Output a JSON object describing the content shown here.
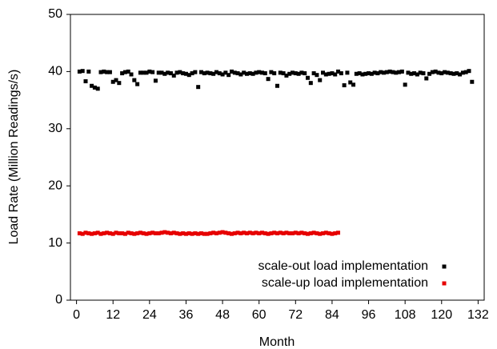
{
  "chart_data": {
    "type": "scatter",
    "xlabel": "Month",
    "ylabel": "Load Rate (Million Readings/s)",
    "xlim": [
      -2,
      134
    ],
    "ylim": [
      0,
      50
    ],
    "xticks": [
      0,
      12,
      24,
      36,
      48,
      60,
      72,
      84,
      96,
      108,
      120,
      132
    ],
    "yticks": [
      0,
      10,
      20,
      30,
      40,
      50
    ],
    "legend": "lower right",
    "series": [
      {
        "name": "scale-out load implementation",
        "color": "#000000",
        "x": [
          1,
          2,
          3,
          4,
          5,
          6,
          7,
          8,
          9,
          10,
          11,
          12,
          13,
          14,
          15,
          16,
          17,
          18,
          19,
          20,
          21,
          22,
          23,
          24,
          25,
          26,
          27,
          28,
          29,
          30,
          31,
          32,
          33,
          34,
          35,
          36,
          37,
          38,
          39,
          40,
          41,
          42,
          43,
          44,
          45,
          46,
          47,
          48,
          49,
          50,
          51,
          52,
          53,
          54,
          55,
          56,
          57,
          58,
          59,
          60,
          61,
          62,
          63,
          64,
          65,
          66,
          67,
          68,
          69,
          70,
          71,
          72,
          73,
          74,
          75,
          76,
          77,
          78,
          79,
          80,
          81,
          82,
          83,
          84,
          85,
          86,
          87,
          88,
          89,
          90,
          91,
          92,
          93,
          94,
          95,
          96,
          97,
          98,
          99,
          100,
          101,
          102,
          103,
          104,
          105,
          106,
          107,
          108,
          109,
          110,
          111,
          112,
          113,
          114,
          115,
          116,
          117,
          118,
          119,
          120,
          121,
          122,
          123,
          124,
          125,
          126,
          127,
          128,
          129,
          130
        ],
        "values": [
          40.0,
          40.1,
          38.3,
          40.0,
          37.5,
          37.2,
          37.0,
          39.9,
          40.0,
          39.9,
          39.9,
          38.2,
          38.5,
          38.0,
          39.7,
          39.9,
          40.0,
          39.5,
          38.5,
          37.8,
          39.8,
          39.8,
          39.8,
          40.0,
          39.9,
          38.4,
          39.8,
          39.8,
          39.6,
          39.8,
          39.7,
          39.3,
          39.8,
          39.9,
          39.7,
          39.6,
          39.4,
          39.7,
          39.9,
          37.3,
          39.9,
          39.7,
          39.8,
          39.7,
          39.6,
          39.9,
          39.7,
          39.5,
          39.8,
          39.4,
          40.0,
          39.8,
          39.7,
          39.5,
          39.8,
          39.6,
          39.7,
          39.6,
          39.8,
          39.9,
          39.8,
          39.7,
          38.7,
          39.9,
          39.7,
          37.5,
          39.8,
          39.7,
          39.3,
          39.6,
          39.8,
          39.7,
          39.6,
          39.8,
          39.7,
          38.9,
          38.0,
          39.7,
          39.4,
          38.5,
          39.8,
          39.5,
          39.6,
          39.7,
          39.5,
          40.0,
          39.7,
          37.6,
          39.8,
          38.1,
          37.7,
          39.6,
          39.7,
          39.5,
          39.6,
          39.7,
          39.6,
          39.8,
          39.7,
          39.9,
          39.8,
          39.9,
          40.0,
          39.9,
          39.8,
          39.9,
          40.0,
          37.7,
          39.8,
          39.6,
          39.7,
          39.5,
          39.8,
          39.7,
          38.8,
          39.6,
          39.9,
          40.0,
          39.8,
          39.7,
          39.9,
          39.8,
          39.7,
          39.6,
          39.7,
          39.5,
          39.8,
          39.9,
          40.1,
          38.2
        ]
      },
      {
        "name": "scale-up load implementation",
        "color": "#e60000",
        "x": [
          1,
          2,
          3,
          4,
          5,
          6,
          7,
          8,
          9,
          10,
          11,
          12,
          13,
          14,
          15,
          16,
          17,
          18,
          19,
          20,
          21,
          22,
          23,
          24,
          25,
          26,
          27,
          28,
          29,
          30,
          31,
          32,
          33,
          34,
          35,
          36,
          37,
          38,
          39,
          40,
          41,
          42,
          43,
          44,
          45,
          46,
          47,
          48,
          49,
          50,
          51,
          52,
          53,
          54,
          55,
          56,
          57,
          58,
          59,
          60,
          61,
          62,
          63,
          64,
          65,
          66,
          67,
          68,
          69,
          70,
          71,
          72,
          73,
          74,
          75,
          76,
          77,
          78,
          79,
          80,
          81,
          82,
          83,
          84,
          85,
          86
        ],
        "values": [
          11.7,
          11.6,
          11.8,
          11.7,
          11.6,
          11.7,
          11.8,
          11.6,
          11.7,
          11.8,
          11.7,
          11.6,
          11.8,
          11.7,
          11.7,
          11.6,
          11.8,
          11.7,
          11.6,
          11.7,
          11.8,
          11.7,
          11.6,
          11.7,
          11.8,
          11.7,
          11.7,
          11.8,
          11.9,
          11.8,
          11.7,
          11.8,
          11.7,
          11.6,
          11.7,
          11.6,
          11.7,
          11.6,
          11.7,
          11.6,
          11.7,
          11.6,
          11.6,
          11.7,
          11.8,
          11.7,
          11.8,
          11.9,
          11.8,
          11.7,
          11.6,
          11.7,
          11.8,
          11.7,
          11.8,
          11.7,
          11.8,
          11.7,
          11.8,
          11.7,
          11.8,
          11.7,
          11.6,
          11.7,
          11.8,
          11.7,
          11.8,
          11.7,
          11.8,
          11.7,
          11.7,
          11.8,
          11.7,
          11.8,
          11.7,
          11.6,
          11.7,
          11.8,
          11.7,
          11.6,
          11.7,
          11.8,
          11.7,
          11.6,
          11.7,
          11.8
        ]
      }
    ]
  }
}
